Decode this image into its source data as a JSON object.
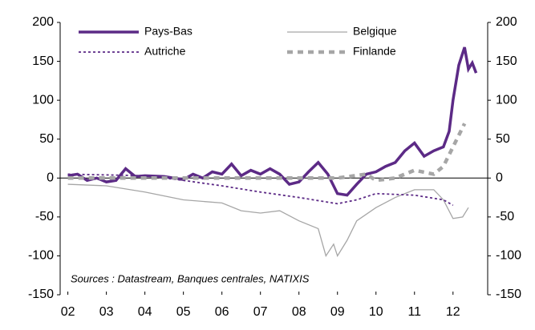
{
  "chart_data": {
    "type": "line",
    "annotation": "Sources : Datastream, Banques centrales, NATIXIS",
    "xlim": [
      2001.8,
      2012.9
    ],
    "xticks": [
      {
        "value": 2002,
        "label": "02"
      },
      {
        "value": 2003,
        "label": "03"
      },
      {
        "value": 2004,
        "label": "04"
      },
      {
        "value": 2005,
        "label": "05"
      },
      {
        "value": 2006,
        "label": "06"
      },
      {
        "value": 2007,
        "label": "07"
      },
      {
        "value": 2008,
        "label": "08"
      },
      {
        "value": 2009,
        "label": "09"
      },
      {
        "value": 2010,
        "label": "10"
      },
      {
        "value": 2011,
        "label": "11"
      },
      {
        "value": 2012,
        "label": "12"
      }
    ],
    "ylim": [
      -150,
      200
    ],
    "yticks": [
      -150,
      -100,
      -50,
      0,
      50,
      100,
      150,
      200
    ],
    "y2lim": [
      -150,
      200
    ],
    "y2ticks": [
      -150,
      -100,
      -50,
      0,
      50,
      100,
      150,
      200
    ],
    "series": [
      {
        "name": "Pays-Bas",
        "color": "#5c2a86",
        "style": "solid-thick",
        "x": [
          2002,
          2002.25,
          2002.5,
          2002.75,
          2003,
          2003.25,
          2003.5,
          2003.75,
          2004,
          2004.5,
          2005,
          2005.25,
          2005.5,
          2005.75,
          2006,
          2006.25,
          2006.5,
          2006.75,
          2007,
          2007.25,
          2007.5,
          2007.75,
          2008,
          2008.25,
          2008.5,
          2008.75,
          2009,
          2009.25,
          2009.5,
          2009.75,
          2010,
          2010.25,
          2010.5,
          2010.75,
          2011,
          2011.25,
          2011.5,
          2011.75,
          2011.9,
          2012,
          2012.15,
          2012.3,
          2012.4,
          2012.5,
          2012.6
        ],
        "values": [
          3,
          5,
          -3,
          0,
          -5,
          -3,
          12,
          2,
          3,
          2,
          -2,
          5,
          0,
          8,
          5,
          18,
          3,
          10,
          5,
          12,
          5,
          -8,
          -5,
          8,
          20,
          5,
          -20,
          -22,
          -8,
          5,
          8,
          15,
          20,
          35,
          45,
          28,
          35,
          40,
          60,
          100,
          145,
          168,
          140,
          148,
          135
        ]
      },
      {
        "name": "Belgique",
        "color": "#a6a6a6",
        "style": "solid-thin",
        "x": [
          2002,
          2003,
          2004,
          2005,
          2006,
          2006.5,
          2007,
          2007.5,
          2008,
          2008.5,
          2008.7,
          2008.9,
          2009,
          2009.25,
          2009.5,
          2010,
          2010.5,
          2011,
          2011.5,
          2011.75,
          2012,
          2012.25,
          2012.4
        ],
        "values": [
          -8,
          -10,
          -18,
          -28,
          -32,
          -42,
          -45,
          -42,
          -55,
          -65,
          -100,
          -85,
          -100,
          -80,
          -55,
          -38,
          -25,
          -15,
          -15,
          -28,
          -52,
          -50,
          -38
        ]
      },
      {
        "name": "Autriche",
        "color": "#5c2a86",
        "style": "dotted",
        "x": [
          2002,
          2004,
          2005,
          2006,
          2007,
          2008,
          2009,
          2009.5,
          2010,
          2011,
          2011.75,
          2012
        ],
        "values": [
          5,
          3,
          -3,
          -10,
          -18,
          -25,
          -33,
          -28,
          -20,
          -22,
          -28,
          -35
        ]
      },
      {
        "name": "Finlande",
        "color": "#a6a6a6",
        "style": "dashed-thick",
        "x": [
          2002,
          2003,
          2004,
          2005,
          2006,
          2007,
          2008,
          2009,
          2009.75,
          2010,
          2010.5,
          2011,
          2011.5,
          2011.75,
          2012,
          2012.3
        ],
        "values": [
          0,
          0,
          0,
          0,
          0,
          0,
          0,
          0,
          5,
          -3,
          0,
          10,
          5,
          15,
          40,
          70
        ]
      }
    ]
  }
}
